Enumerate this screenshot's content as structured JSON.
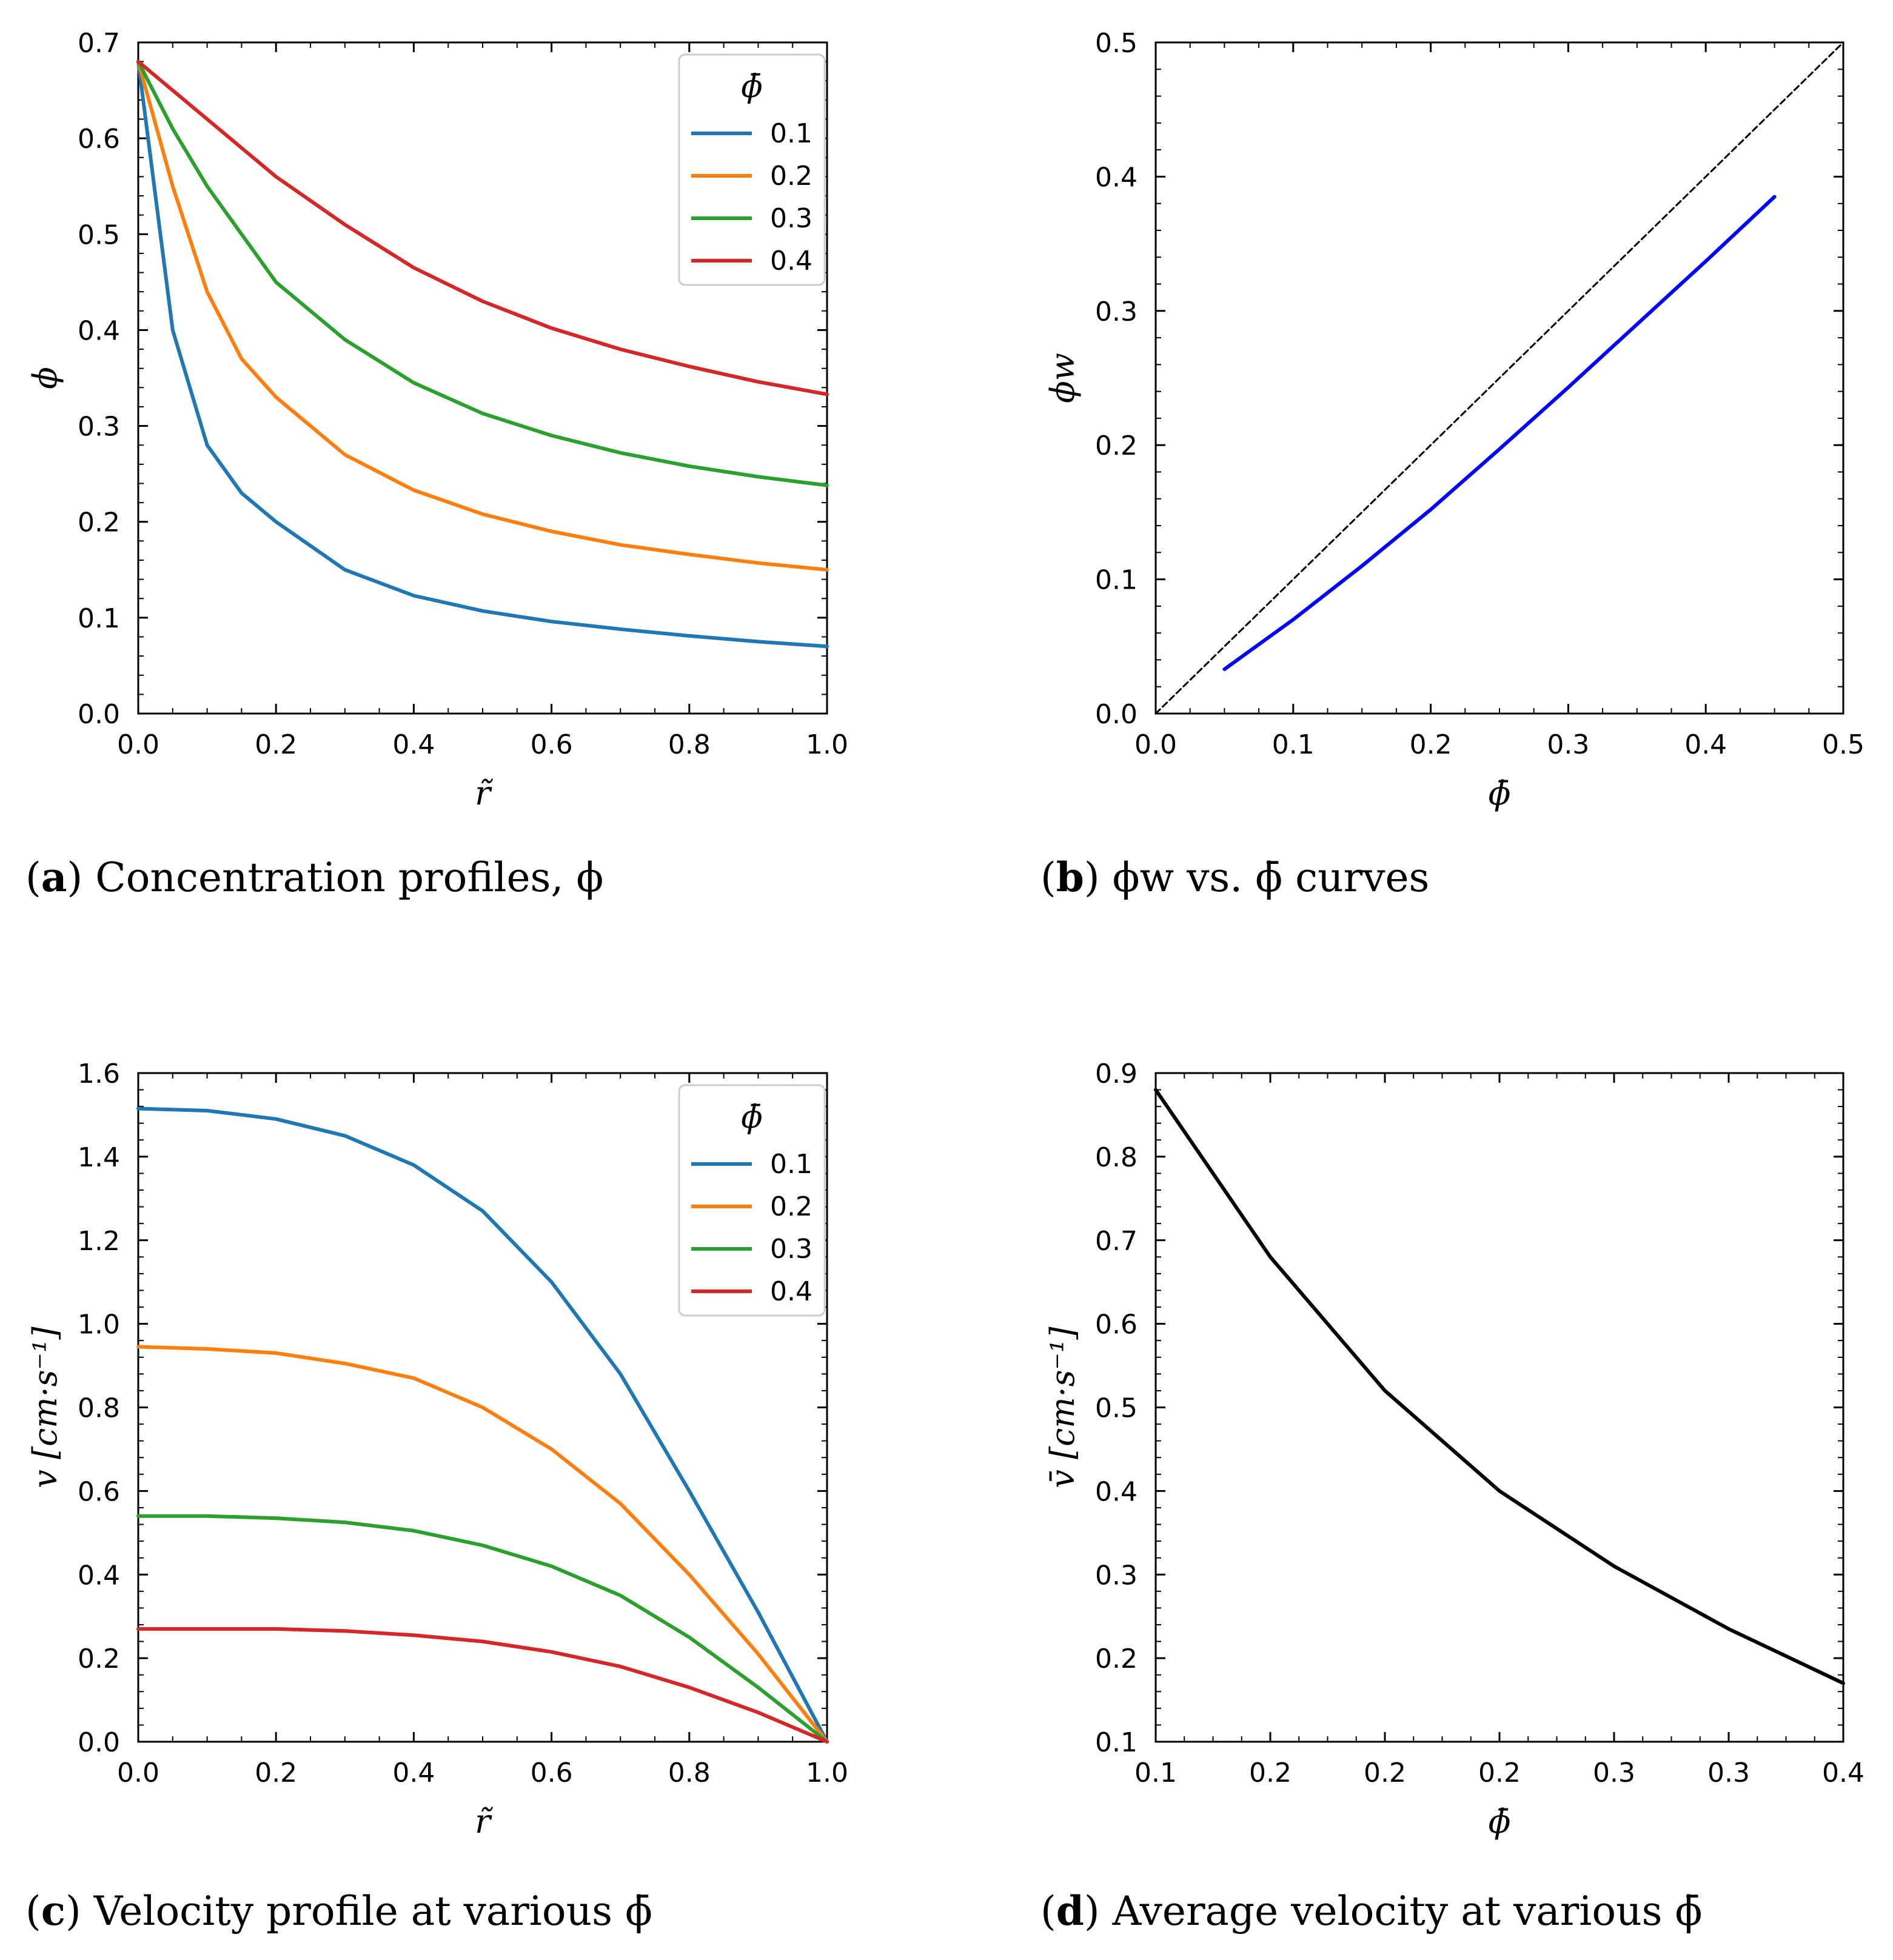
{
  "chart_data": [
    {
      "id": "a",
      "type": "line",
      "xlabel": "r̃",
      "ylabel": "ϕ",
      "xlim": [
        0.0,
        1.0
      ],
      "ylim": [
        0.0,
        0.7
      ],
      "xticks": [
        "0.0",
        "0.2",
        "0.4",
        "0.6",
        "0.8",
        "1.0"
      ],
      "yticks": [
        "0.0",
        "0.1",
        "0.2",
        "0.3",
        "0.4",
        "0.5",
        "0.6",
        "0.7"
      ],
      "legend": {
        "title": "ϕ̄",
        "placement": "top-right"
      },
      "x": [
        0.0,
        0.05,
        0.1,
        0.15,
        0.2,
        0.3,
        0.4,
        0.5,
        0.6,
        0.7,
        0.8,
        0.9,
        1.0
      ],
      "series": [
        {
          "name": "0.1",
          "color": "#1f77b4",
          "values": [
            0.68,
            0.4,
            0.28,
            0.23,
            0.2,
            0.15,
            0.123,
            0.107,
            0.096,
            0.088,
            0.081,
            0.075,
            0.07
          ]
        },
        {
          "name": "0.2",
          "color": "#ff7f0e",
          "values": [
            0.68,
            0.55,
            0.44,
            0.37,
            0.33,
            0.27,
            0.233,
            0.208,
            0.19,
            0.176,
            0.166,
            0.157,
            0.15
          ]
        },
        {
          "name": "0.3",
          "color": "#2ca02c",
          "values": [
            0.68,
            0.61,
            0.55,
            0.5,
            0.45,
            0.39,
            0.345,
            0.313,
            0.29,
            0.272,
            0.258,
            0.247,
            0.238
          ]
        },
        {
          "name": "0.4",
          "color": "#d62728",
          "values": [
            0.68,
            0.65,
            0.62,
            0.59,
            0.56,
            0.51,
            0.465,
            0.43,
            0.402,
            0.38,
            0.362,
            0.346,
            0.333
          ]
        }
      ],
      "caption": {
        "label": "a",
        "text": "Concentration profiles, ϕ"
      }
    },
    {
      "id": "b",
      "type": "line",
      "xlabel": "ϕ̄",
      "ylabel": "ϕw",
      "xlim": [
        0.0,
        0.5
      ],
      "ylim": [
        0.0,
        0.5
      ],
      "xticks": [
        "0.0",
        "0.1",
        "0.2",
        "0.3",
        "0.4",
        "0.5"
      ],
      "yticks": [
        "0.0",
        "0.1",
        "0.2",
        "0.3",
        "0.4",
        "0.5"
      ],
      "x": [
        0.05,
        0.1,
        0.15,
        0.2,
        0.25,
        0.3,
        0.35,
        0.4,
        0.45
      ],
      "series": [
        {
          "name": "ϕw",
          "color": "#0000ff",
          "values": [
            0.033,
            0.07,
            0.11,
            0.152,
            0.197,
            0.243,
            0.29,
            0.337,
            0.385
          ]
        },
        {
          "name": "identity",
          "color": "#000000",
          "style": "dashed",
          "x": [
            0.0,
            0.5
          ],
          "values": [
            0.0,
            0.5
          ]
        }
      ],
      "caption": {
        "label": "b",
        "text": "ϕw vs. ϕ̄ curves"
      }
    },
    {
      "id": "c",
      "type": "line",
      "xlabel": "r̃",
      "ylabel": "v [cm·s⁻¹]",
      "xlim": [
        0.0,
        1.0
      ],
      "ylim": [
        0.0,
        1.6
      ],
      "xticks": [
        "0.0",
        "0.2",
        "0.4",
        "0.6",
        "0.8",
        "1.0"
      ],
      "yticks": [
        "0.0",
        "0.2",
        "0.4",
        "0.6",
        "0.8",
        "1.0",
        "1.2",
        "1.4",
        "1.6"
      ],
      "legend": {
        "title": "ϕ̄",
        "placement": "top-right"
      },
      "x": [
        0.0,
        0.1,
        0.2,
        0.3,
        0.4,
        0.5,
        0.6,
        0.7,
        0.8,
        0.9,
        1.0
      ],
      "series": [
        {
          "name": "0.1",
          "color": "#1f77b4",
          "values": [
            1.515,
            1.51,
            1.49,
            1.45,
            1.38,
            1.27,
            1.1,
            0.88,
            0.6,
            0.31,
            0.0
          ]
        },
        {
          "name": "0.2",
          "color": "#ff7f0e",
          "values": [
            0.945,
            0.94,
            0.93,
            0.905,
            0.87,
            0.8,
            0.7,
            0.57,
            0.4,
            0.21,
            0.0
          ]
        },
        {
          "name": "0.3",
          "color": "#2ca02c",
          "values": [
            0.54,
            0.54,
            0.535,
            0.525,
            0.505,
            0.47,
            0.42,
            0.35,
            0.25,
            0.13,
            0.0
          ]
        },
        {
          "name": "0.4",
          "color": "#d62728",
          "values": [
            0.27,
            0.27,
            0.27,
            0.265,
            0.255,
            0.24,
            0.215,
            0.18,
            0.13,
            0.07,
            0.0
          ]
        }
      ],
      "caption": {
        "label": "c",
        "text": "Velocity profile at various ϕ̄"
      }
    },
    {
      "id": "d",
      "type": "line",
      "xlabel": "ϕ̄",
      "ylabel": "v̄ [cm·s⁻¹]",
      "xlim": [
        0.1,
        0.4
      ],
      "ylim": [
        0.1,
        0.9
      ],
      "xticks": [
        "0.1",
        "0.2",
        "0.2",
        "0.2",
        "0.3",
        "0.3",
        "0.4"
      ],
      "yticks": [
        "0.1",
        "0.2",
        "0.3",
        "0.4",
        "0.5",
        "0.6",
        "0.7",
        "0.8",
        "0.9"
      ],
      "x": [
        0.1,
        0.15,
        0.2,
        0.25,
        0.3,
        0.35,
        0.4
      ],
      "series": [
        {
          "name": "v̄",
          "color": "#000000",
          "values": [
            0.88,
            0.68,
            0.52,
            0.4,
            0.31,
            0.235,
            0.17
          ]
        }
      ],
      "caption": {
        "label": "d",
        "text": "Average velocity at various ϕ̄"
      }
    }
  ]
}
